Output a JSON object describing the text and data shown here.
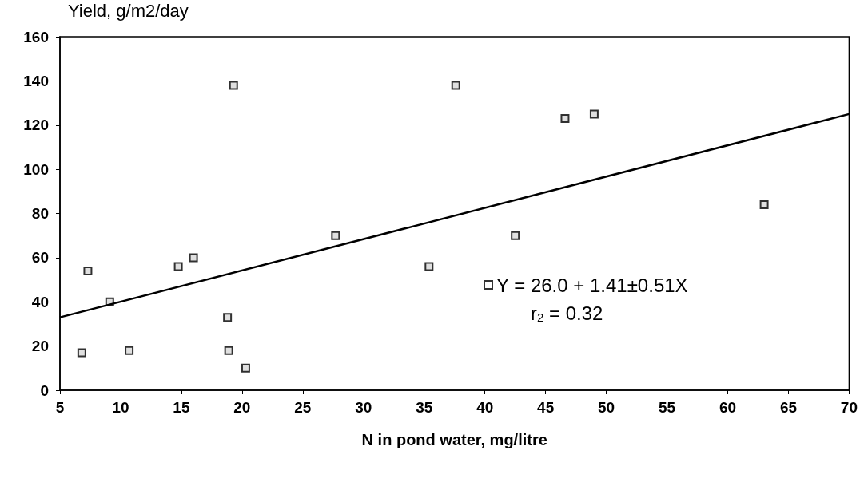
{
  "chart_data": {
    "type": "scatter",
    "xlabel": "N in pond water, mg/litre",
    "ylabel": "Yield, g/m2/day",
    "xlim": [
      5,
      70
    ],
    "xticks": [
      5,
      10,
      15,
      20,
      25,
      30,
      35,
      40,
      45,
      50,
      55,
      60,
      65,
      70
    ],
    "ylim": [
      0,
      160
    ],
    "yticks": [
      0,
      20,
      40,
      60,
      80,
      100,
      120,
      140,
      160
    ],
    "grid": false,
    "legend": "right",
    "marker": "square",
    "series": [
      {
        "name": "Y = 26.0 + 1.41±0.51X",
        "color": "#000000",
        "x": [
          6.8,
          7.3,
          9.1,
          10.7,
          14.75,
          16.0,
          19.3,
          18.8,
          18.9,
          20.3,
          27.7,
          35.4,
          37.6,
          42.5,
          46.6,
          49.0,
          63.0
        ],
        "values": [
          17,
          54,
          40,
          18,
          56,
          60,
          138,
          33,
          18,
          10,
          70,
          56,
          138,
          70,
          123,
          125,
          84
        ]
      },
      {
        "type": "line",
        "color": "#000000",
        "x": [
          5,
          70
        ],
        "values": [
          33,
          125
        ],
        "marker": "none",
        "line_style": "solid"
      }
    ],
    "annotations": [
      "r$_{2}$ = 0.32"
    ]
  }
}
